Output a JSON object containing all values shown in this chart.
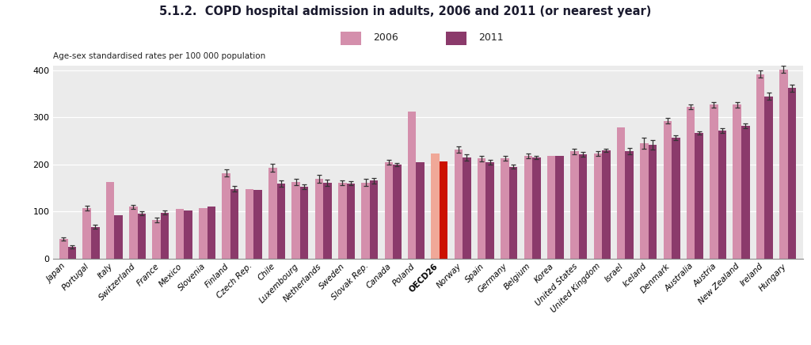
{
  "title": "5.1.2.  COPD hospital admission in adults, 2006 and 2011 (or nearest year)",
  "ylabel": "Age-sex standardised rates per 100 000 population",
  "ylim": [
    0,
    410
  ],
  "yticks": [
    0,
    100,
    200,
    300,
    400
  ],
  "legend_labels": [
    "2006",
    "2011"
  ],
  "color_2006": "#d48fac",
  "color_2011": "#8b3a6b",
  "color_oecd_2006": "#f0a898",
  "color_oecd_2011": "#cc1100",
  "background_color": "#e8e8e8",
  "plot_bg": "#ebebeb",
  "countries": [
    "Japan",
    "Portugal",
    "Italy",
    "Switzerland",
    "France",
    "Mexico",
    "Slovenia",
    "Finland",
    "Czech Rep.",
    "Chile",
    "Luxembourg",
    "Netherlands",
    "Sweden",
    "Slovak Rep.",
    "Canada",
    "Poland",
    "OECD26",
    "Norway",
    "Spain",
    "Germany",
    "Belgium",
    "Korea",
    "United States",
    "United Kingdom",
    "Israel",
    "Iceland",
    "Denmark",
    "Australia",
    "Austria",
    "New Zealand",
    "Ireland",
    "Hungary"
  ],
  "values_2006": [
    42,
    107,
    163,
    110,
    83,
    105,
    108,
    182,
    148,
    193,
    163,
    170,
    162,
    162,
    205,
    313,
    224,
    232,
    213,
    213,
    218,
    218,
    228,
    223,
    278,
    245,
    293,
    322,
    327,
    327,
    392,
    402
  ],
  "values_2011": [
    25,
    68,
    92,
    96,
    98,
    103,
    111,
    148,
    146,
    160,
    153,
    161,
    160,
    166,
    200,
    205,
    207,
    215,
    205,
    195,
    215,
    218,
    222,
    230,
    228,
    242,
    257,
    267,
    272,
    282,
    345,
    362
  ],
  "errors_2006": [
    3,
    5,
    0,
    5,
    5,
    0,
    0,
    7,
    0,
    8,
    6,
    8,
    5,
    7,
    5,
    0,
    0,
    7,
    6,
    5,
    5,
    0,
    6,
    5,
    0,
    12,
    6,
    5,
    6,
    6,
    8,
    8
  ],
  "errors_2011": [
    3,
    5,
    0,
    4,
    4,
    0,
    0,
    6,
    0,
    7,
    5,
    7,
    4,
    6,
    4,
    0,
    0,
    6,
    5,
    4,
    4,
    0,
    5,
    4,
    7,
    10,
    5,
    4,
    5,
    5,
    7,
    7
  ],
  "oecd_index": 16
}
